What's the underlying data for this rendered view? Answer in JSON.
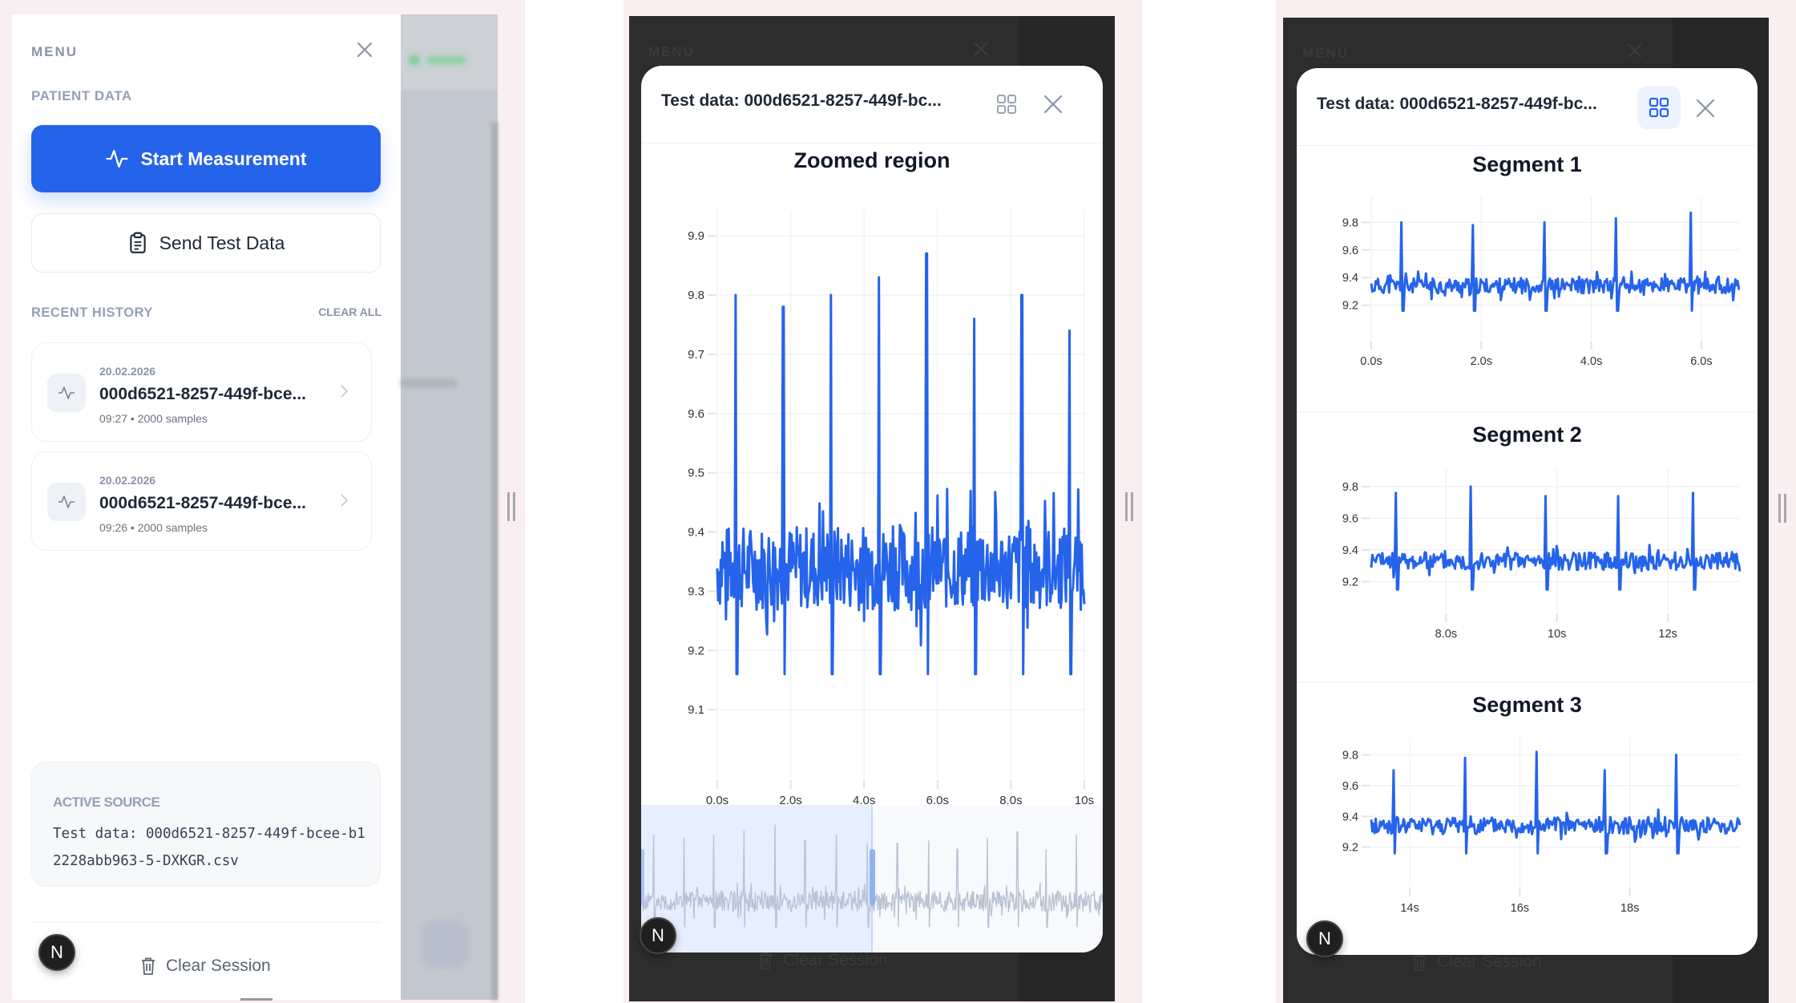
{
  "frames": [
    {
      "id": "menu-open",
      "sidebar": {
        "title": "MENU",
        "section_patient": "PATIENT DATA",
        "start_button": "Start Measurement",
        "send_button": "Send Test Data",
        "section_history": "RECENT HISTORY",
        "clear_all": "CLEAR ALL",
        "history": [
          {
            "date": "20.02.2026",
            "name": "000d6521-8257-449f-bce...",
            "meta": "09:27 • 2000 samples"
          },
          {
            "date": "20.02.2026",
            "name": "000d6521-8257-449f-bce...",
            "meta": "09:26 • 2000 samples"
          }
        ],
        "active_source_label": "ACTIVE SOURCE",
        "active_source_value": "Test data: 000d6521-8257-449f-bcee-b12228abb963-5-DXKGR.csv",
        "clear_session": "Clear Session",
        "avatar_letter": "N"
      }
    },
    {
      "id": "zoomed-view",
      "background": {
        "menu": "MENU",
        "clear_session": "Clear Session"
      },
      "modal": {
        "title": "Test data: 000d6521-8257-449f-bc...",
        "grid_active": false
      },
      "avatar_letter": "N"
    },
    {
      "id": "segments-view",
      "background": {
        "menu": "MENU",
        "clear_session": "Clear Session"
      },
      "modal": {
        "title": "Test data: 000d6521-8257-449f-bc...",
        "grid_active": true
      },
      "avatar_letter": "N"
    }
  ],
  "colors": {
    "accent": "#2563eb",
    "line": "#2563eb",
    "navigator_line": "#b9c3d3",
    "navigator_selection": "#e6efff",
    "muted_text": "#8a94a6"
  },
  "chart_data": [
    {
      "type": "line",
      "title": "Zoomed region",
      "xlabel": "",
      "ylabel": "",
      "x_range": [
        0,
        10
      ],
      "ylim": [
        9.0,
        9.93
      ],
      "yticks": [
        9.1,
        9.2,
        9.3,
        9.4,
        9.5,
        9.6,
        9.7,
        9.8,
        9.9
      ],
      "xticks": [
        "0.0s",
        "2.0s",
        "4.0s",
        "6.0s",
        "8.0s",
        "10s"
      ],
      "xtick_values": [
        0,
        2,
        4,
        6,
        8,
        10
      ],
      "grid": true,
      "baseline": 9.34,
      "noise_amplitude": 0.09,
      "peaks": [
        {
          "x": 0.5,
          "y": 9.8
        },
        {
          "x": 1.8,
          "y": 9.78
        },
        {
          "x": 3.1,
          "y": 9.8
        },
        {
          "x": 4.4,
          "y": 9.83
        },
        {
          "x": 5.7,
          "y": 9.87
        },
        {
          "x": 7.0,
          "y": 9.76
        },
        {
          "x": 8.3,
          "y": 9.8
        },
        {
          "x": 9.6,
          "y": 9.74
        }
      ],
      "navigator": {
        "x_range": [
          0,
          20
        ],
        "selection": [
          0,
          10
        ]
      }
    },
    {
      "type": "line",
      "title": "Segment 1",
      "x_range": [
        0,
        6.7
      ],
      "ylim": [
        9.0,
        9.93
      ],
      "yticks": [
        9.2,
        9.4,
        9.6,
        9.8
      ],
      "xticks": [
        "0.0s",
        "2.0s",
        "4.0s",
        "6.0s"
      ],
      "xtick_values": [
        0,
        2,
        4,
        6
      ],
      "grid": true,
      "baseline": 9.34,
      "noise_amplitude": 0.07,
      "peaks": [
        {
          "x": 0.55,
          "y": 9.8
        },
        {
          "x": 1.85,
          "y": 9.78
        },
        {
          "x": 3.15,
          "y": 9.8
        },
        {
          "x": 4.45,
          "y": 9.83
        },
        {
          "x": 5.8,
          "y": 9.87
        }
      ]
    },
    {
      "type": "line",
      "title": "Segment 2",
      "x_range": [
        6.65,
        13.3
      ],
      "ylim": [
        9.05,
        9.86
      ],
      "yticks": [
        9.2,
        9.4,
        9.6,
        9.8
      ],
      "xticks": [
        "8.0s",
        "10s",
        "12s"
      ],
      "xtick_values": [
        8,
        10,
        12
      ],
      "grid": true,
      "baseline": 9.33,
      "noise_amplitude": 0.07,
      "peaks": [
        {
          "x": 7.1,
          "y": 9.76
        },
        {
          "x": 8.45,
          "y": 9.8
        },
        {
          "x": 9.8,
          "y": 9.74
        },
        {
          "x": 11.1,
          "y": 9.74
        },
        {
          "x": 12.45,
          "y": 9.76
        }
      ]
    },
    {
      "type": "line",
      "title": "Segment 3",
      "x_range": [
        13.3,
        20
      ],
      "ylim": [
        9.0,
        9.86
      ],
      "yticks": [
        9.2,
        9.4,
        9.6,
        9.8
      ],
      "xticks": [
        "14s",
        "16s",
        "18s"
      ],
      "xtick_values": [
        14,
        16,
        18
      ],
      "grid": true,
      "baseline": 9.34,
      "noise_amplitude": 0.07,
      "peaks": [
        {
          "x": 13.7,
          "y": 9.7
        },
        {
          "x": 15.0,
          "y": 9.78
        },
        {
          "x": 16.3,
          "y": 9.82
        },
        {
          "x": 17.55,
          "y": 9.7
        },
        {
          "x": 18.85,
          "y": 9.8
        }
      ]
    }
  ]
}
